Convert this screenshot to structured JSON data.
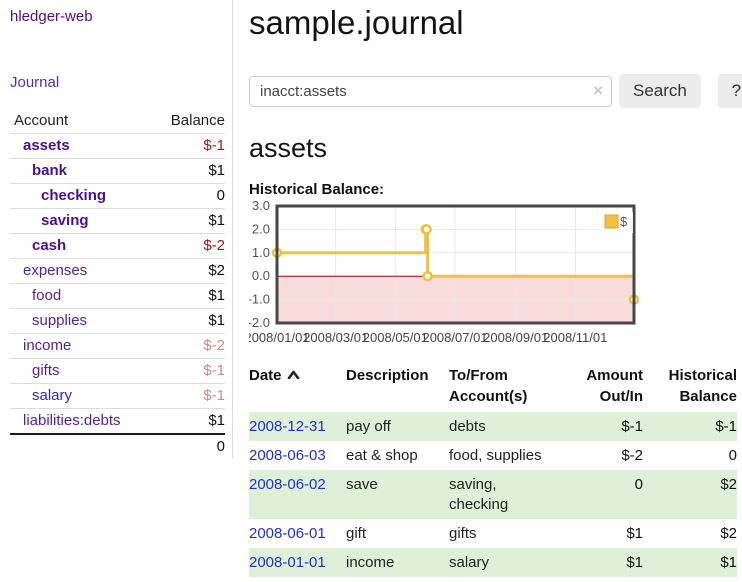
{
  "app": {
    "title": "hledger-web"
  },
  "colors": {
    "accent_purple": "#552299",
    "link_blue": "#2230cc",
    "negative_strong": "#9c1616",
    "negative_muted": "#c98a8a",
    "row_stripe_green": "#dff0d8",
    "chart_line_gold": "#edc240"
  },
  "sidebar": {
    "nav": {
      "journal_label": "Journal"
    },
    "accounts_table": {
      "headers": {
        "account": "Account",
        "balance": "Balance"
      },
      "rows": [
        {
          "name": "assets",
          "balance": "$-1"
        },
        {
          "name": "bank",
          "balance": "$1"
        },
        {
          "name": "checking",
          "balance": "0"
        },
        {
          "name": "saving",
          "balance": "$1"
        },
        {
          "name": "cash",
          "balance": "$-2"
        },
        {
          "name": "expenses",
          "balance": "$2"
        },
        {
          "name": "food",
          "balance": "$1"
        },
        {
          "name": "supplies",
          "balance": "$1"
        },
        {
          "name": "income",
          "balance": "$-2"
        },
        {
          "name": "gifts",
          "balance": "$-1"
        },
        {
          "name": "salary",
          "balance": "$-1"
        },
        {
          "name": "liabilities:debts",
          "balance": "$1"
        }
      ],
      "total": "0"
    }
  },
  "main": {
    "title": "sample.journal",
    "search": {
      "value": "inacct:assets",
      "clear_icon": "×",
      "button_label": "Search",
      "help_label": "?"
    },
    "account_heading": "assets",
    "chart_label": "Historical Balance:"
  },
  "chart_data": {
    "type": "line",
    "subtype": "step-after",
    "title": "Historical Balance:",
    "series": [
      {
        "name": "$",
        "color": "#edc240",
        "points": [
          [
            "2008-01-01",
            1
          ],
          [
            "2008-06-01",
            2
          ],
          [
            "2008-06-02",
            2
          ],
          [
            "2008-06-03",
            0
          ],
          [
            "2008-12-31",
            -1
          ]
        ]
      }
    ],
    "x_range": [
      "2008-01-01",
      "2008-12-31"
    ],
    "x_ticks": [
      "2008/01/01",
      "2008/03/01",
      "2008/05/01",
      "2008/07/01",
      "2008/09/01",
      "2008/11/01"
    ],
    "y_ticks": [
      "-2.0",
      "-1.0",
      "0.0",
      "1.0",
      "2.0",
      "3.0"
    ],
    "ylim": [
      -2,
      3
    ],
    "grid": true,
    "legend": {
      "position": "top-right",
      "label": "$"
    },
    "negative_region_fill": "#f9dddd",
    "zero_line_color": "#a40000"
  },
  "transactions_table": {
    "headers": {
      "date": "Date",
      "description": "Description",
      "accounts": "To/From Account(s)",
      "amount": "Amount Out/In",
      "balance": "Historical Balance"
    },
    "rows": [
      {
        "date": "2008-12-31",
        "description": "pay off",
        "accounts": "debts",
        "amount": "$-1",
        "balance": "$-1"
      },
      {
        "date": "2008-06-03",
        "description": "eat & shop",
        "accounts": "food, supplies",
        "amount": "$-2",
        "balance": "0"
      },
      {
        "date": "2008-06-02",
        "description": "save",
        "accounts": "saving, checking",
        "amount": "0",
        "balance": "$2"
      },
      {
        "date": "2008-06-01",
        "description": "gift",
        "accounts": "gifts",
        "amount": "$1",
        "balance": "$2"
      },
      {
        "date": "2008-01-01",
        "description": "income",
        "accounts": "salary",
        "amount": "$1",
        "balance": "$1"
      }
    ]
  }
}
